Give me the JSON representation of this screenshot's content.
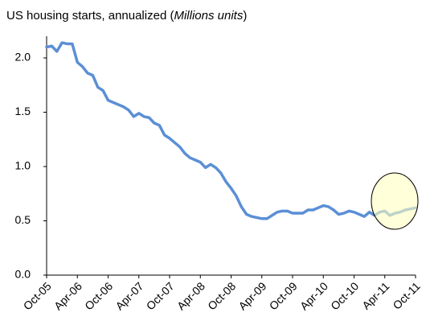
{
  "chart_data": {
    "type": "line",
    "title": [
      "US housing starts, annualized (",
      "Millions units",
      ")"
    ],
    "categories": [
      "Oct-05",
      null,
      null,
      null,
      null,
      null,
      "Apr-06",
      null,
      null,
      null,
      null,
      null,
      "Oct-06",
      null,
      null,
      null,
      null,
      null,
      "Apr-07",
      null,
      null,
      null,
      null,
      null,
      "Oct-07",
      null,
      null,
      null,
      null,
      null,
      "Apr-08",
      null,
      null,
      null,
      null,
      null,
      "Oct-08",
      null,
      null,
      null,
      null,
      null,
      "Apr-09",
      null,
      null,
      null,
      null,
      null,
      "Oct-09",
      null,
      null,
      null,
      null,
      null,
      "Apr-10",
      null,
      null,
      null,
      null,
      null,
      "Oct-10",
      null,
      null,
      null,
      null,
      null,
      "Apr-11",
      null,
      null,
      null,
      null,
      null,
      "Oct-11"
    ],
    "values": [
      2.1,
      2.11,
      2.06,
      2.14,
      2.13,
      2.13,
      1.96,
      1.92,
      1.86,
      1.84,
      1.73,
      1.7,
      1.61,
      1.59,
      1.57,
      1.55,
      1.52,
      1.46,
      1.49,
      1.46,
      1.45,
      1.4,
      1.38,
      1.29,
      1.26,
      1.22,
      1.18,
      1.12,
      1.08,
      1.06,
      1.04,
      0.99,
      1.02,
      0.99,
      0.94,
      0.86,
      0.8,
      0.73,
      0.63,
      0.56,
      0.54,
      0.53,
      0.52,
      0.52,
      0.55,
      0.58,
      0.59,
      0.59,
      0.57,
      0.57,
      0.57,
      0.6,
      0.6,
      0.62,
      0.64,
      0.63,
      0.6,
      0.56,
      0.57,
      0.59,
      0.58,
      0.56,
      0.54,
      0.58,
      0.55,
      0.58,
      0.59,
      0.55,
      0.57,
      0.58,
      0.6,
      0.61,
      0.62
    ],
    "color": "#5b8fd6",
    "ylim": [
      0,
      2.2
    ],
    "yticks": [
      {
        "value": 0,
        "label": "0.0"
      },
      0.5,
      {
        "value": 1,
        "label": "1.0"
      },
      1.5,
      {
        "value": 2,
        "label": "2.0"
      }
    ]
  }
}
